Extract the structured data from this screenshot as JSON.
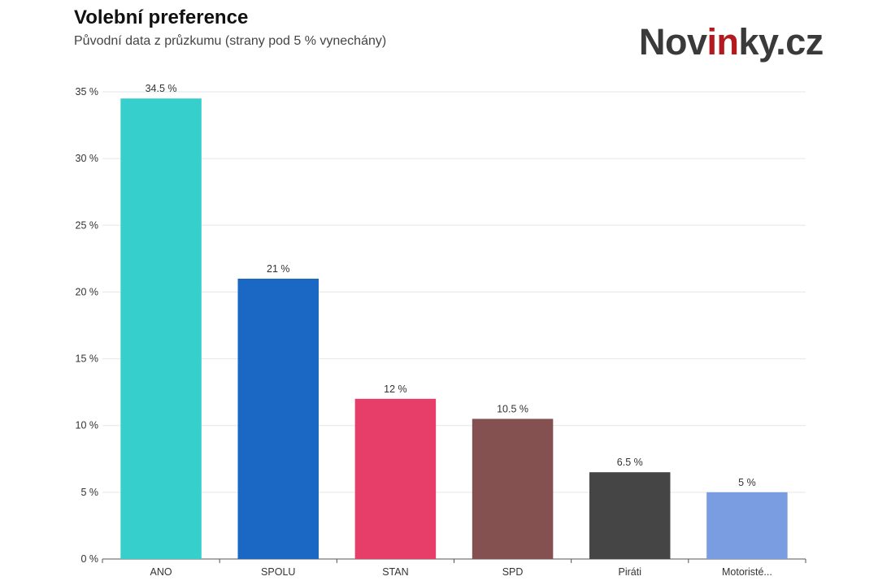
{
  "header": {
    "title": "Volební preference",
    "subtitle": "Původní data z průzkumu (strany pod 5 % vynechány)"
  },
  "logo": {
    "part1": "Nov",
    "accent": "in",
    "part2": "ky.cz"
  },
  "chart_data": {
    "type": "bar",
    "title": "Volební preference",
    "subtitle": "Původní data z průzkumu (strany pod 5 % vynechány)",
    "categories": [
      "ANO",
      "SPOLU",
      "STAN",
      "SPD",
      "Piráti",
      "Motoristé..."
    ],
    "values": [
      34.5,
      21,
      12,
      10.5,
      6.5,
      5
    ],
    "value_labels": [
      "34.5 %",
      "21 %",
      "12 %",
      "10.5 %",
      "6.5 %",
      "5 %"
    ],
    "colors": [
      "#36cfcb",
      "#1a67c4",
      "#e63d69",
      "#845050",
      "#454545",
      "#7a9ce0"
    ],
    "ylim": [
      0,
      35
    ],
    "yticks": [
      0,
      5,
      10,
      15,
      20,
      25,
      30,
      35
    ],
    "ytick_labels": [
      "0 %",
      "5 %",
      "10 %",
      "15 %",
      "20 %",
      "25 %",
      "30 %",
      "35 %"
    ],
    "grid": true,
    "xlabel": "",
    "ylabel": ""
  }
}
